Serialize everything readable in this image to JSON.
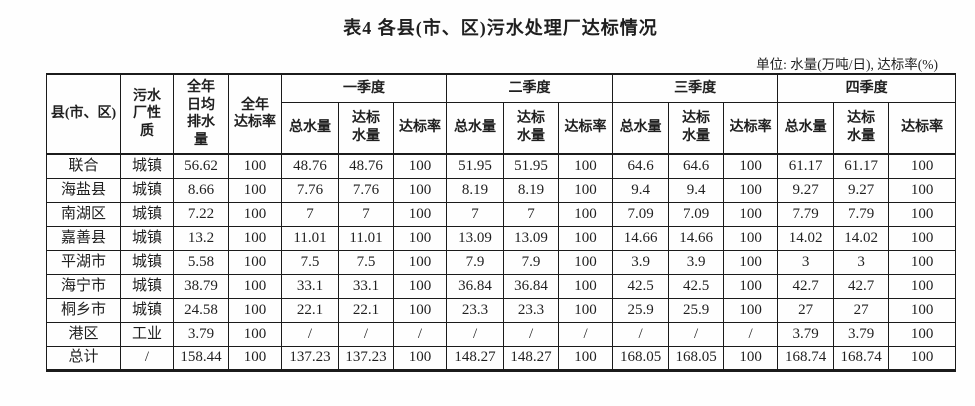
{
  "page": {
    "title": "表4 各县(市、区)污水处理厂达标情况",
    "unit_note": "单位: 水量(万吨/日), 达标率(%)"
  },
  "table": {
    "header": {
      "county": "县(市、区)",
      "plant_type": "污水\n厂性\n质",
      "annual_daily_drainage": "全年\n日均\n排水\n量",
      "annual_compliance_rate": "全年\n达标率",
      "quarters": [
        "一季度",
        "二季度",
        "三季度",
        "四季度"
      ],
      "sub": [
        "总水量",
        "达标\n水量",
        "达标率"
      ]
    },
    "rows": [
      [
        "联合",
        "城镇",
        "56.62",
        "100",
        "48.76",
        "48.76",
        "100",
        "51.95",
        "51.95",
        "100",
        "64.6",
        "64.6",
        "100",
        "61.17",
        "61.17",
        "100"
      ],
      [
        "海盐县",
        "城镇",
        "8.66",
        "100",
        "7.76",
        "7.76",
        "100",
        "8.19",
        "8.19",
        "100",
        "9.4",
        "9.4",
        "100",
        "9.27",
        "9.27",
        "100"
      ],
      [
        "南湖区",
        "城镇",
        "7.22",
        "100",
        "7",
        "7",
        "100",
        "7",
        "7",
        "100",
        "7.09",
        "7.09",
        "100",
        "7.79",
        "7.79",
        "100"
      ],
      [
        "嘉善县",
        "城镇",
        "13.2",
        "100",
        "11.01",
        "11.01",
        "100",
        "13.09",
        "13.09",
        "100",
        "14.66",
        "14.66",
        "100",
        "14.02",
        "14.02",
        "100"
      ],
      [
        "平湖市",
        "城镇",
        "5.58",
        "100",
        "7.5",
        "7.5",
        "100",
        "7.9",
        "7.9",
        "100",
        "3.9",
        "3.9",
        "100",
        "3",
        "3",
        "100"
      ],
      [
        "海宁市",
        "城镇",
        "38.79",
        "100",
        "33.1",
        "33.1",
        "100",
        "36.84",
        "36.84",
        "100",
        "42.5",
        "42.5",
        "100",
        "42.7",
        "42.7",
        "100"
      ],
      [
        "桐乡市",
        "城镇",
        "24.58",
        "100",
        "22.1",
        "22.1",
        "100",
        "23.3",
        "23.3",
        "100",
        "25.9",
        "25.9",
        "100",
        "27",
        "27",
        "100"
      ],
      [
        "港区",
        "工业",
        "3.79",
        "100",
        "/",
        "/",
        "/",
        "/",
        "/",
        "/",
        "/",
        "/",
        "/",
        "3.79",
        "3.79",
        "100"
      ],
      [
        "总计",
        "/",
        "158.44",
        "100",
        "137.23",
        "137.23",
        "100",
        "148.27",
        "148.27",
        "100",
        "168.05",
        "168.05",
        "100",
        "168.74",
        "168.74",
        "100"
      ]
    ]
  }
}
